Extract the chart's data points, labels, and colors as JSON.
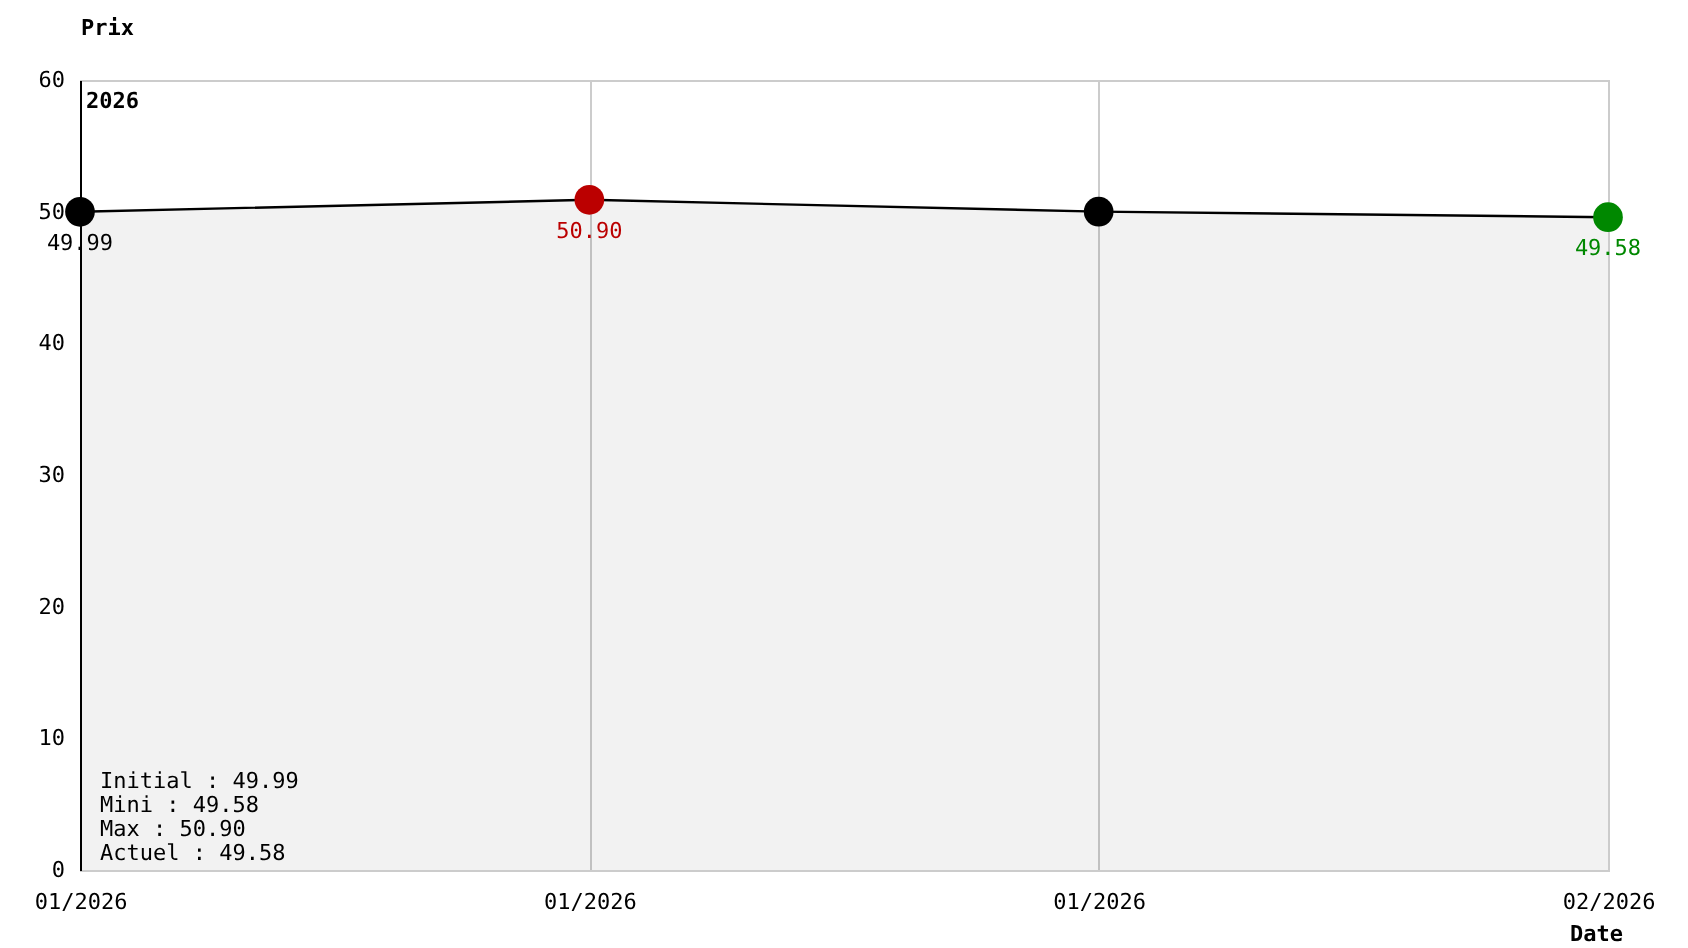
{
  "chart_data": {
    "type": "area",
    "xlabel": "Date",
    "ylabel": "Prix",
    "categories": [
      "01/2026",
      "01/2026",
      "01/2026",
      "02/2026"
    ],
    "series": [
      {
        "color": "#000000",
        "colors": [
          "#000000",
          "#bb0000",
          "#000000",
          "#008800"
        ],
        "values": [
          49.99,
          50.9,
          50.0,
          49.58
        ],
        "value_labels": [
          "49.99",
          "50.90",
          null,
          "49.58"
        ]
      }
    ],
    "ylim": [
      0,
      60
    ],
    "yticks": [
      0,
      10,
      20,
      30,
      40,
      50,
      60
    ],
    "grid": "x",
    "marker": "circle",
    "annotations": [
      "2026",
      "Initial : 49.99",
      "Mini : 49.58",
      "Max : 50.90",
      "Actuel : 49.58"
    ]
  }
}
